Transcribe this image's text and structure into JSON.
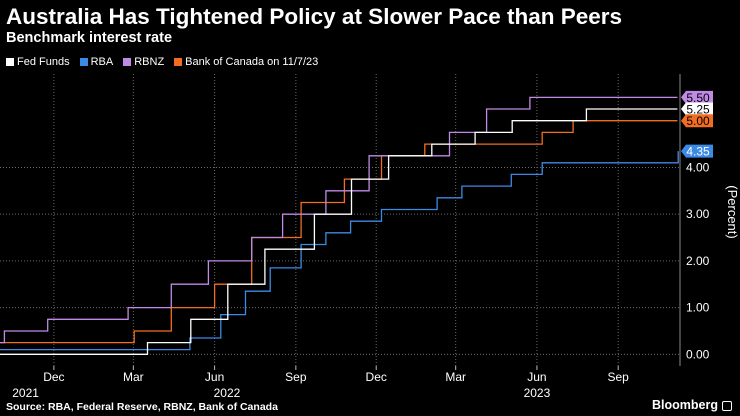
{
  "title": "Australia Has Tightened Policy at Slower Pace than Peers",
  "subtitle": "Benchmark interest rate",
  "source": "Source: RBA, Federal Reserve, RBNZ, Bank of Canada",
  "brand": "Bloomberg",
  "chart_data": {
    "type": "line",
    "title": "Australia Has Tightened Policy at Slower Pace than Peers",
    "subtitle": "Benchmark interest rate",
    "ylabel": "(Percent)",
    "xlabel": "",
    "ylim": [
      -0.25,
      6.0
    ],
    "yticks": [
      "0.00",
      "1.00",
      "2.00",
      "3.00",
      "4.00"
    ],
    "xlim": [
      "2021-10-01",
      "2023-11-10"
    ],
    "xticks": [
      {
        "label": "Dec",
        "date": "2021-12-01"
      },
      {
        "label": "Mar",
        "date": "2022-03-01"
      },
      {
        "label": "Jun",
        "date": "2022-06-01"
      },
      {
        "label": "Sep",
        "date": "2022-09-01"
      },
      {
        "label": "Dec",
        "date": "2022-12-01"
      },
      {
        "label": "Mar",
        "date": "2023-03-01"
      },
      {
        "label": "Jun",
        "date": "2023-06-01"
      },
      {
        "label": "Sep",
        "date": "2023-09-01"
      }
    ],
    "years": [
      {
        "label": "2021",
        "date": "2021-10-30"
      },
      {
        "label": "2022",
        "date": "2022-06-15"
      },
      {
        "label": "2023",
        "date": "2023-06-01"
      }
    ],
    "grid": true,
    "legend_position": "top-left",
    "series": [
      {
        "name": "Fed Funds",
        "color": "#ffffff",
        "end_label": "5.25",
        "x": [
          "2021-10-01",
          "2022-03-17",
          "2022-05-05",
          "2022-06-16",
          "2022-07-28",
          "2022-09-22",
          "2022-11-03",
          "2022-12-15",
          "2023-02-02",
          "2023-03-23",
          "2023-05-04",
          "2023-07-27",
          "2023-11-07"
        ],
        "y": [
          0.0,
          0.25,
          0.75,
          1.5,
          2.25,
          3.0,
          3.75,
          4.25,
          4.5,
          4.75,
          5.0,
          5.25,
          5.25
        ]
      },
      {
        "name": "RBA",
        "color": "#3c8ae6",
        "end_label": "4.35",
        "x": [
          "2021-10-01",
          "2022-05-04",
          "2022-06-08",
          "2022-07-06",
          "2022-08-03",
          "2022-09-07",
          "2022-10-05",
          "2022-11-02",
          "2022-12-07",
          "2023-02-08",
          "2023-03-08",
          "2023-05-03",
          "2023-06-07",
          "2023-11-07",
          "2023-11-08"
        ],
        "y": [
          0.1,
          0.35,
          0.85,
          1.35,
          1.85,
          2.35,
          2.6,
          2.85,
          3.1,
          3.35,
          3.6,
          3.85,
          4.1,
          4.1,
          4.35
        ]
      },
      {
        "name": "RBNZ",
        "color": "#c08ae6",
        "end_label": "5.50",
        "x": [
          "2021-10-01",
          "2021-10-06",
          "2021-11-24",
          "2022-02-23",
          "2022-04-13",
          "2022-05-25",
          "2022-07-13",
          "2022-08-17",
          "2022-10-05",
          "2022-11-23",
          "2023-02-22",
          "2023-04-05",
          "2023-05-24",
          "2023-11-07"
        ],
        "y": [
          0.25,
          0.5,
          0.75,
          1.0,
          1.5,
          2.0,
          2.5,
          3.0,
          3.5,
          4.25,
          4.75,
          5.25,
          5.5,
          5.5
        ]
      },
      {
        "name": "Bank of Canada on 11/7/23",
        "color": "#f26d21",
        "end_label": "5.00",
        "x": [
          "2021-10-01",
          "2022-03-02",
          "2022-04-13",
          "2022-06-01",
          "2022-07-13",
          "2022-09-07",
          "2022-10-26",
          "2022-12-07",
          "2023-01-25",
          "2023-06-07",
          "2023-07-12",
          "2023-11-07"
        ],
        "y": [
          0.25,
          0.5,
          1.0,
          1.5,
          2.5,
          3.25,
          3.75,
          4.25,
          4.5,
          4.75,
          5.0,
          5.0
        ]
      }
    ]
  }
}
